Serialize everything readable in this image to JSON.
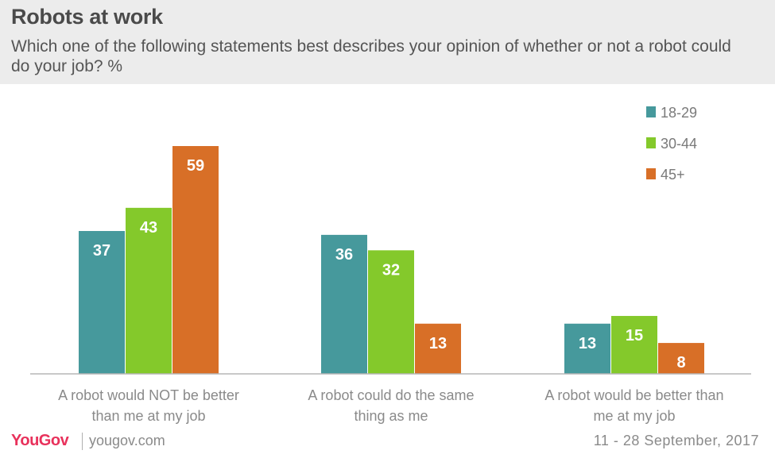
{
  "header": {
    "title": "Robots at work",
    "subtitle": "Which one of the following statements best describes your opinion of whether or not a robot could do your job? %"
  },
  "footer": {
    "brand": "YouGov",
    "site": "yougov.com",
    "date": "11 - 28 September, 2017"
  },
  "colors": {
    "teal": "#46999c",
    "green": "#84c92b",
    "orange": "#d86f27",
    "header_bg": "#ececec",
    "brand": "#e8315b"
  },
  "chart_data": {
    "type": "bar",
    "categories": [
      [
        "A robot would NOT be better",
        "than me at my job"
      ],
      [
        "A robot could do the same",
        "thing as me"
      ],
      [
        "A robot would be better than",
        "me at my job"
      ]
    ],
    "series": [
      {
        "name": "18-29",
        "color": "#46999c",
        "values": [
          37,
          36,
          13
        ]
      },
      {
        "name": "30-44",
        "color": "#84c92b",
        "values": [
          43,
          32,
          15
        ]
      },
      {
        "name": "45+",
        "color": "#d86f27",
        "values": [
          59,
          13,
          8
        ]
      }
    ],
    "ylim": [
      0,
      60
    ],
    "grid": false,
    "legend": "top-right",
    "data_labels": true
  }
}
